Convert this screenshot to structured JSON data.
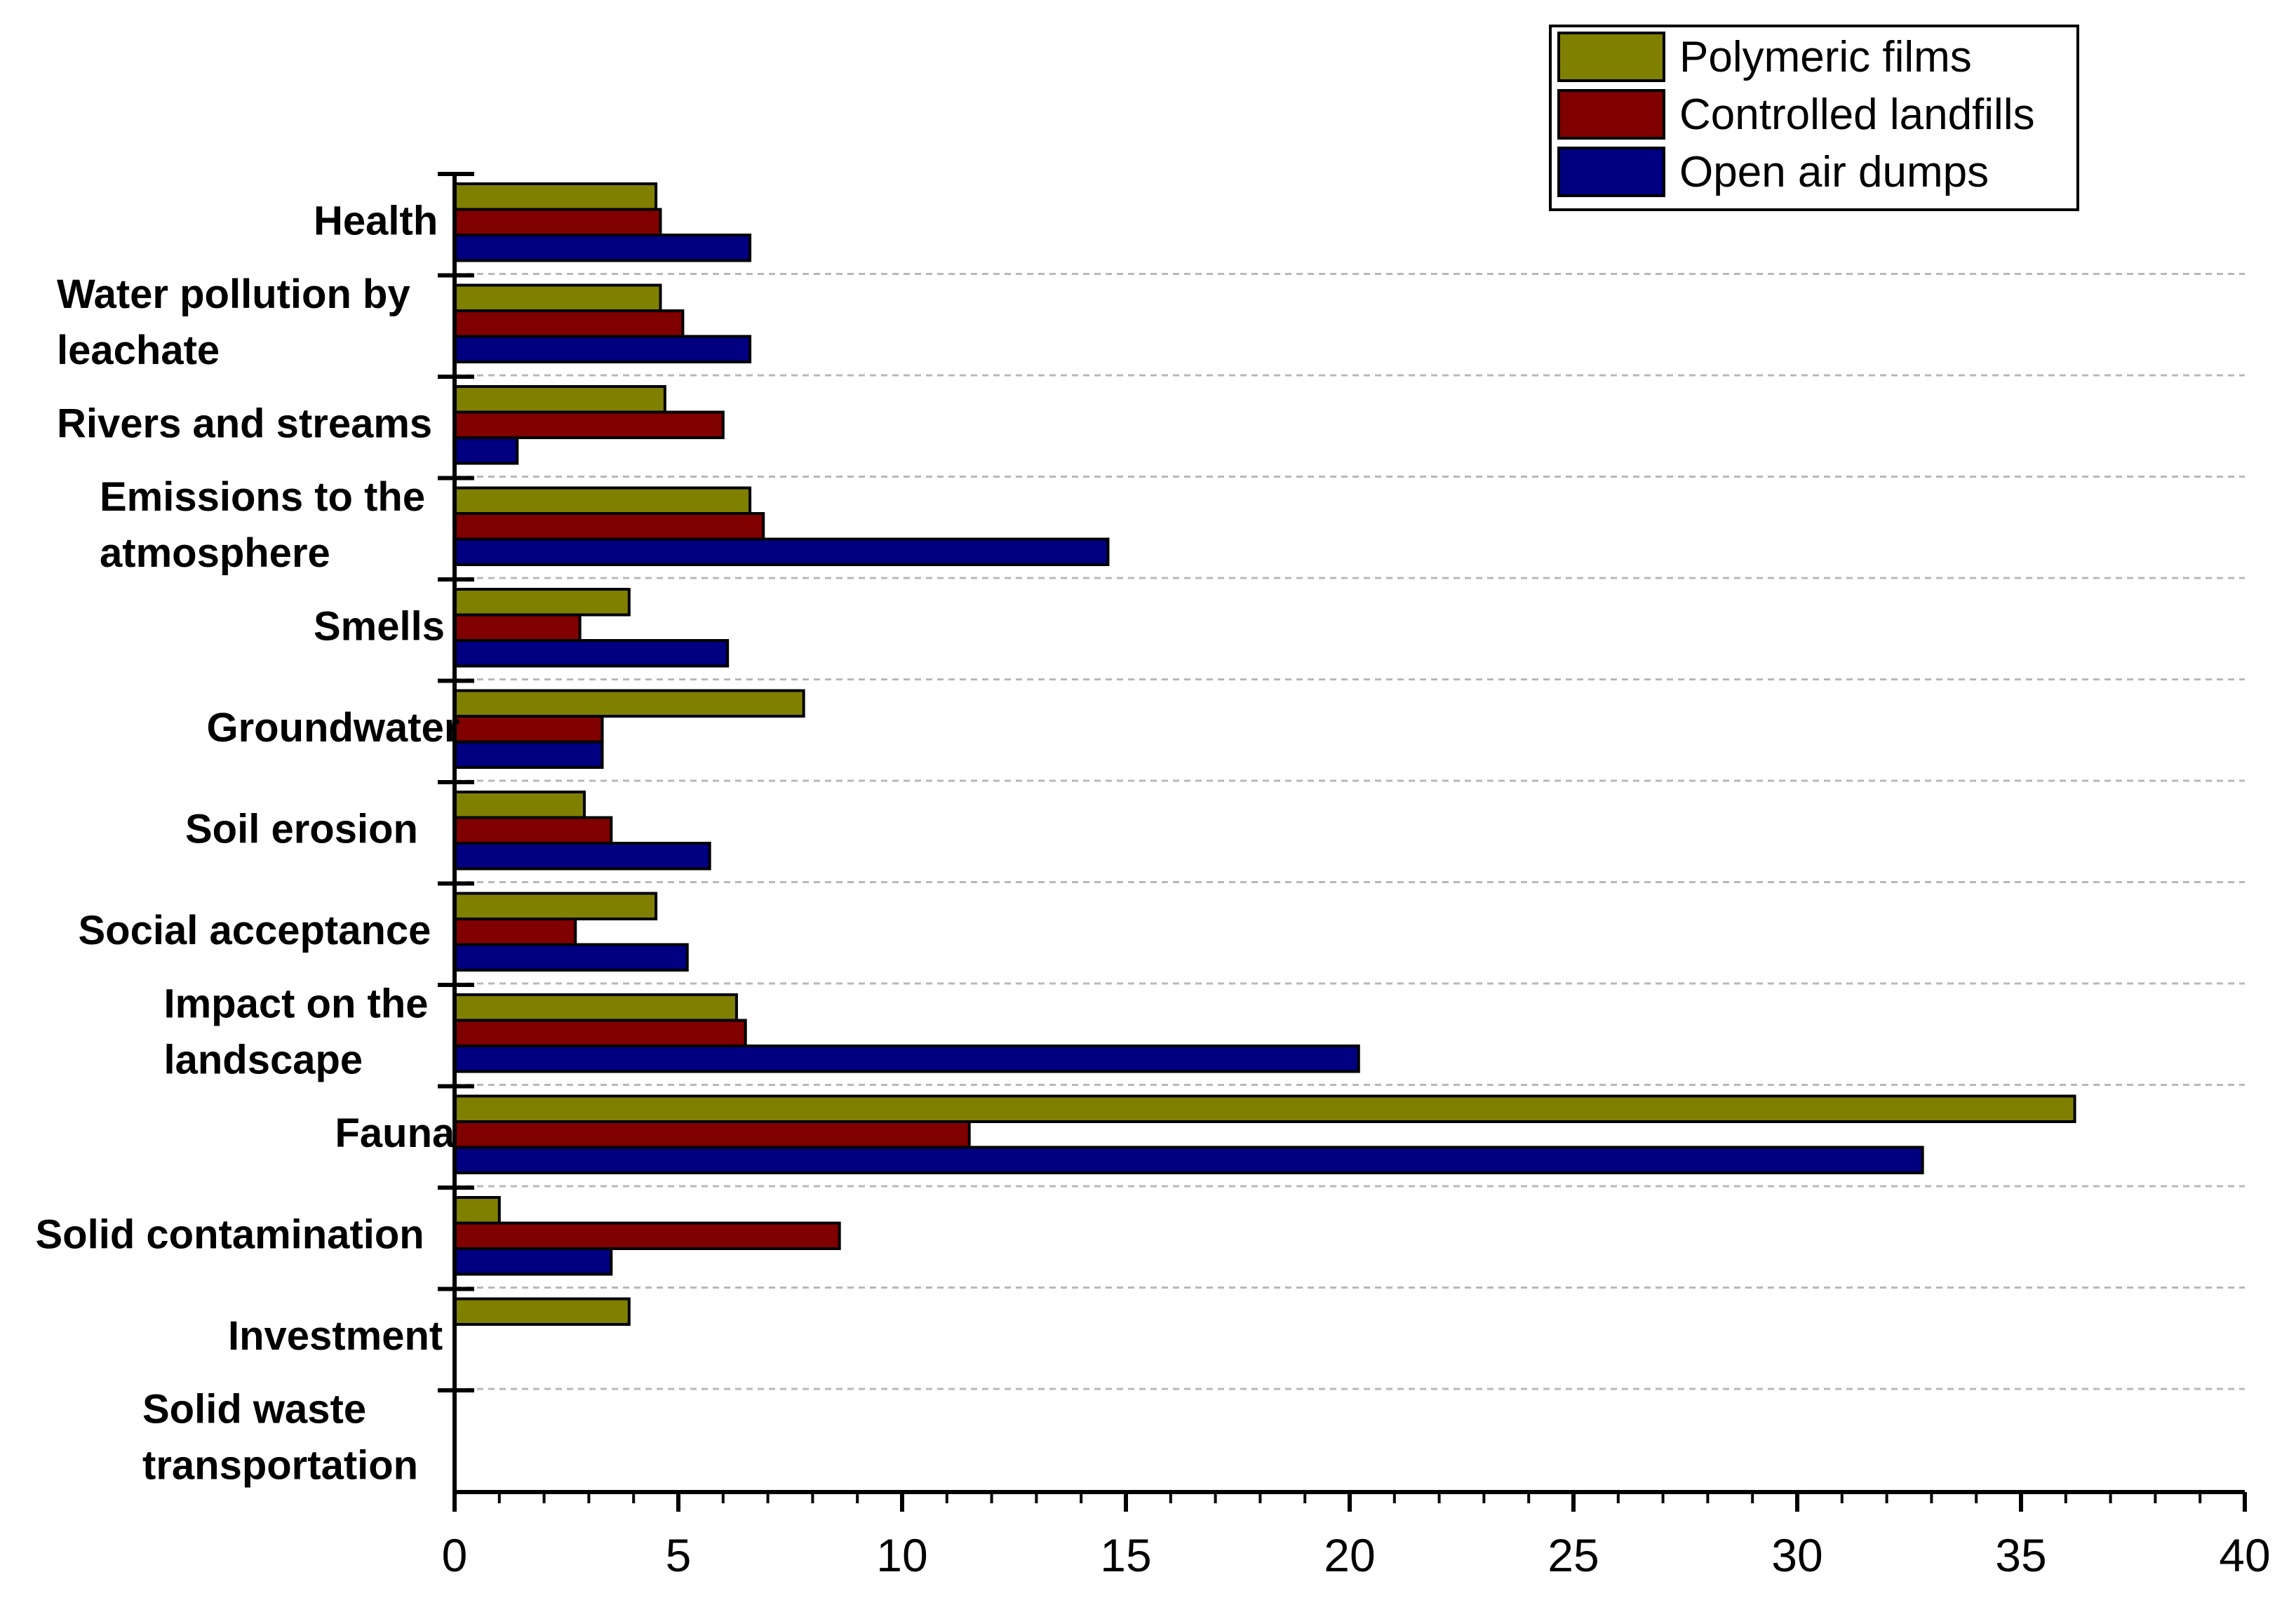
{
  "chart_data": {
    "type": "bar",
    "orientation": "horizontal",
    "title": "",
    "xlabel": "",
    "ylabel": "",
    "xlim": [
      0,
      40
    ],
    "x_ticks": [
      "0",
      "5",
      "10",
      "15",
      "20",
      "25",
      "30",
      "35",
      "40"
    ],
    "grid": "horizontal dashed separators between categories",
    "legend_position": "top-right",
    "categories": [
      [
        "Health"
      ],
      [
        "Water pollution by",
        "leachate"
      ],
      [
        "Rivers and streams"
      ],
      [
        "Emissions to the",
        "atmosphere"
      ],
      [
        "Smells"
      ],
      [
        "Groundwater"
      ],
      [
        "Soil erosion"
      ],
      [
        "Social acceptance"
      ],
      [
        "Impact on the",
        "landscape"
      ],
      [
        "Fauna"
      ],
      [
        "Solid contamination"
      ],
      [
        "Investment"
      ],
      [
        "Solid waste",
        "transportation"
      ]
    ],
    "series": [
      {
        "name": "Polymeric films",
        "color": "#808000",
        "values": [
          4.5,
          4.6,
          4.7,
          6.6,
          3.9,
          7.8,
          2.9,
          4.5,
          6.3,
          36.2,
          1.0,
          3.9,
          0
        ]
      },
      {
        "name": "Controlled landfills",
        "color": "#800000",
        "values": [
          4.6,
          5.1,
          6.0,
          6.9,
          2.8,
          3.3,
          3.5,
          2.7,
          6.5,
          11.5,
          8.6,
          0,
          0
        ]
      },
      {
        "name": "Open air dumps",
        "color": "#000080",
        "values": [
          6.6,
          6.6,
          1.4,
          14.6,
          6.1,
          3.3,
          5.7,
          5.2,
          20.2,
          32.8,
          3.5,
          0,
          0
        ]
      }
    ]
  }
}
